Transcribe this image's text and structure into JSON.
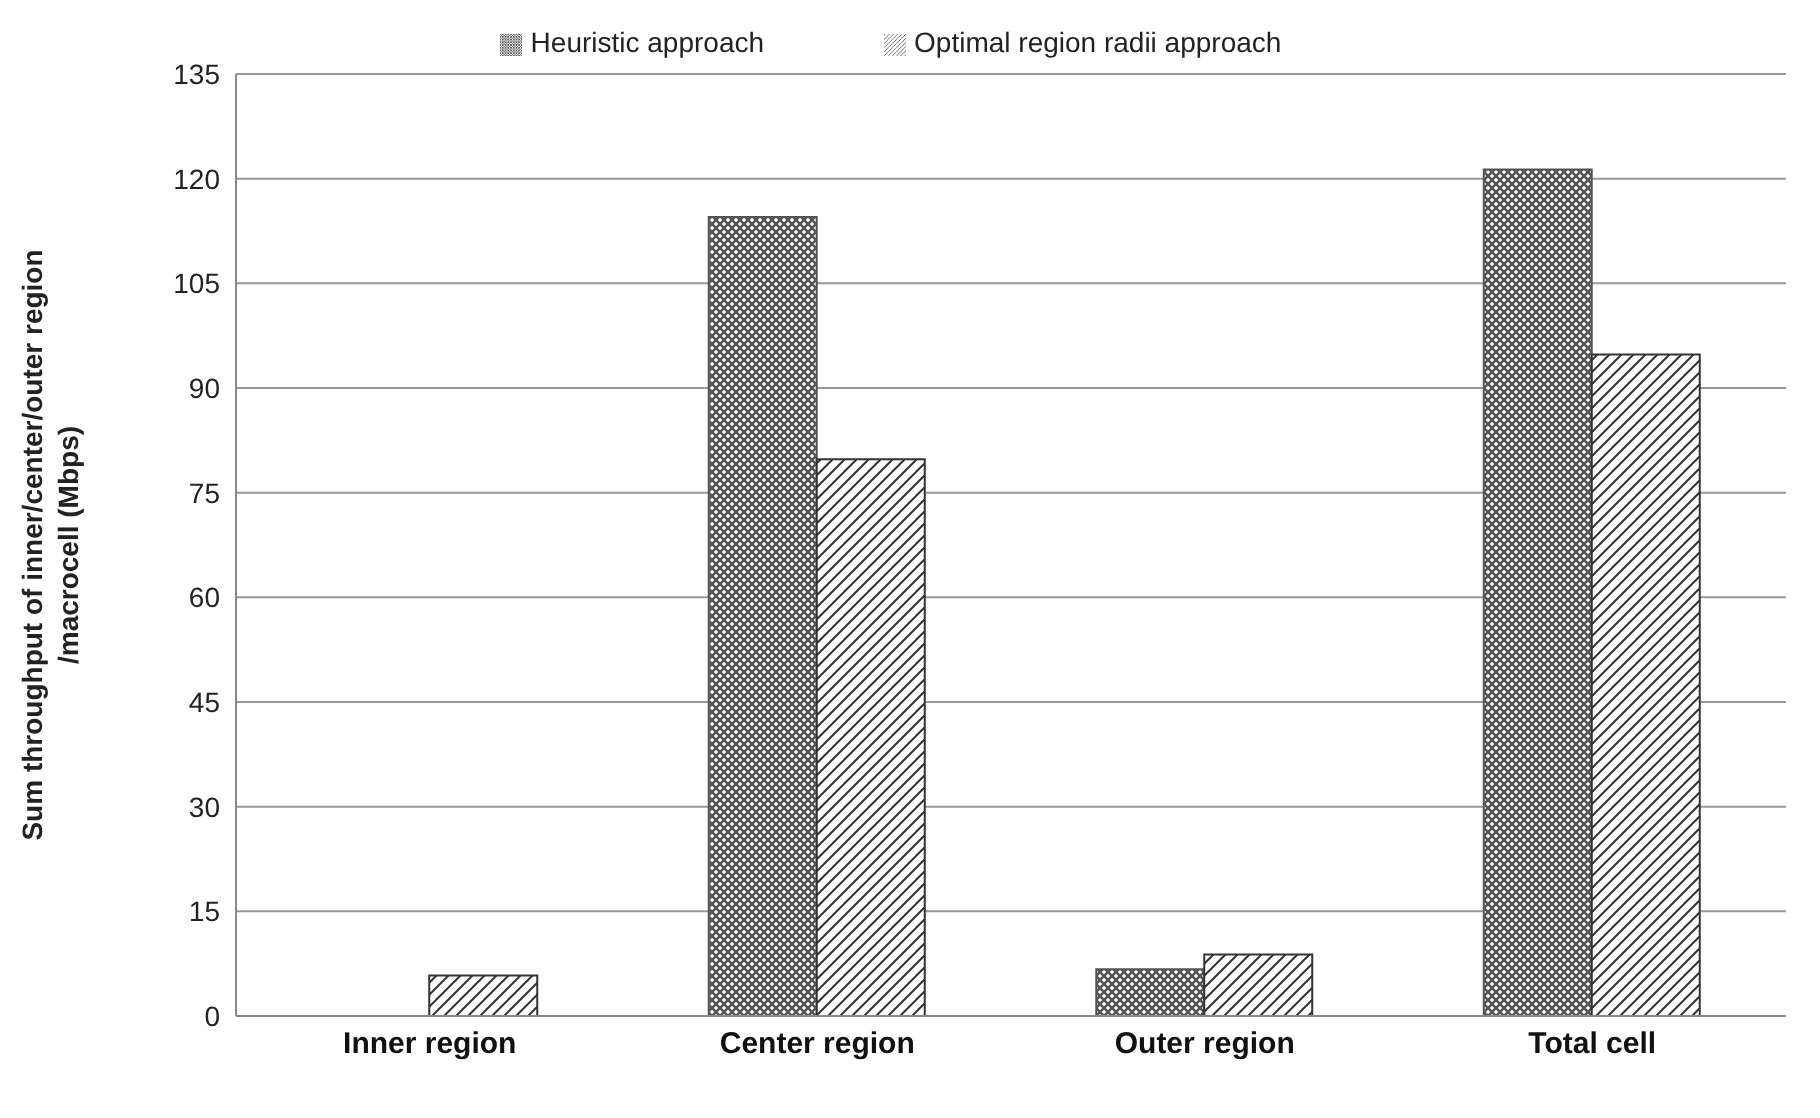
{
  "chart_data": {
    "type": "bar",
    "ylabel": "Sum throughput of inner/center/outer region\n/macrocell (Mbps)",
    "categories": [
      "Inner region",
      "Center region",
      "Outer region",
      "Total cell"
    ],
    "series": [
      {
        "name": "Heuristic approach",
        "color": "#555555",
        "values": [
          0,
          114.5,
          6.7,
          121.3
        ]
      },
      {
        "name": "Optimal region radii approach",
        "color": "#333333",
        "values": [
          5.8,
          79.8,
          8.8,
          94.8
        ]
      }
    ],
    "ylim": [
      0,
      135
    ],
    "yticks": [
      0,
      15,
      30,
      45,
      60,
      75,
      90,
      105,
      120,
      135
    ],
    "grid": "y",
    "legend": "top"
  }
}
